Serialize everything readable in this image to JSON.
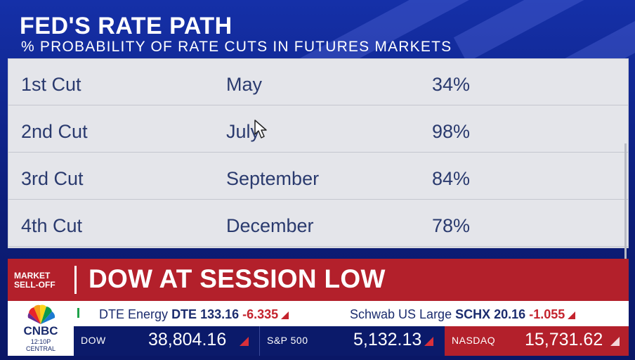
{
  "header": {
    "title": "FED'S RATE PATH",
    "subtitle": "% PROBABILITY OF RATE CUTS IN FUTURES MARKETS"
  },
  "table": {
    "rows": [
      {
        "cut": "1st Cut",
        "month": "May",
        "probability": "34%"
      },
      {
        "cut": "2nd Cut",
        "month": "July",
        "probability": "98%"
      },
      {
        "cut": "3rd Cut",
        "month": "September",
        "probability": "84%"
      },
      {
        "cut": "4th Cut",
        "month": "December",
        "probability": "78%"
      }
    ]
  },
  "lower_third": {
    "tag_line1": "MARKET",
    "tag_line2": "SELL-OFF",
    "headline": "DOW AT SESSION LOW"
  },
  "logo": {
    "network": "CNBC",
    "time": "12:10P",
    "zone": "CENTRAL"
  },
  "ticker": {
    "items": [
      {
        "name": "DTE Energy",
        "symbol": "DTE",
        "price": "133.16",
        "change": "-6.335"
      },
      {
        "name": "Schwab US Large",
        "symbol": "SCHX",
        "price": "20.16",
        "change": "-1.055"
      }
    ]
  },
  "indices": [
    {
      "name": "DOW",
      "value": "38,804.16"
    },
    {
      "name": "S&P 500",
      "value": "5,132.13"
    },
    {
      "name": "NASDAQ",
      "value": "15,731.62"
    }
  ],
  "colors": {
    "background": "#10268f",
    "table_bg": "#e4e5ea",
    "table_text": "#2a3a6e",
    "lower_third_red": "#b3202b",
    "index_navy": "#0b1a6a",
    "negative_red": "#c4232d"
  },
  "icons": [
    "pointer-cursor-icon",
    "cnbc-peacock-icon",
    "down-triangle-icon"
  ]
}
